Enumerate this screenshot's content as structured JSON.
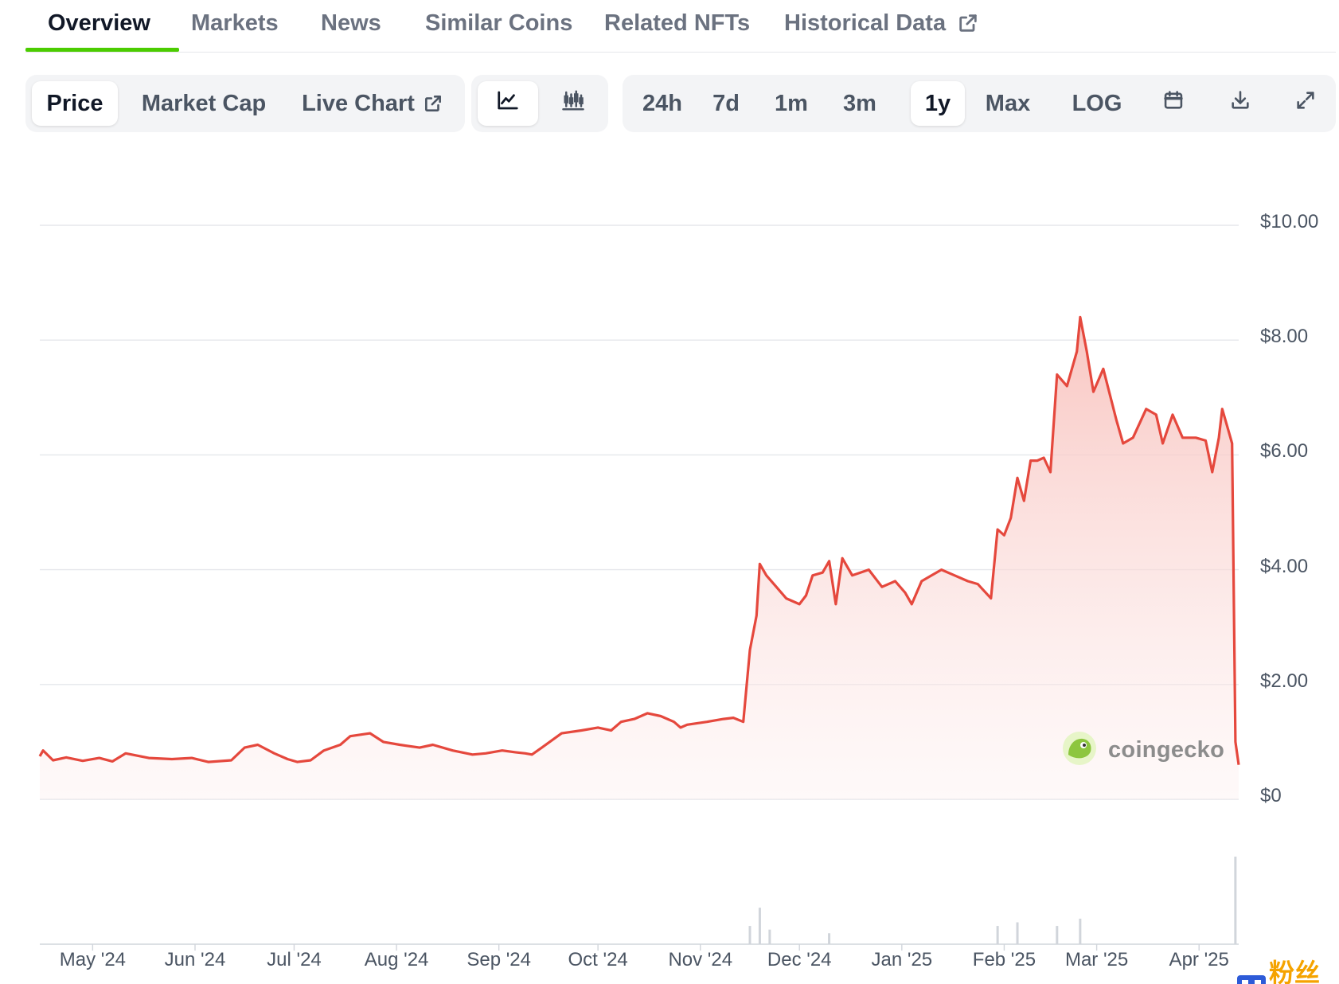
{
  "tabs": [
    {
      "label": "Overview",
      "active": true
    },
    {
      "label": "Markets",
      "active": false
    },
    {
      "label": "News",
      "active": false
    },
    {
      "label": "Similar Coins",
      "active": false
    },
    {
      "label": "Related NFTs",
      "active": false
    },
    {
      "label": "Historical Data",
      "active": false,
      "external": true
    }
  ],
  "metric_toggle": {
    "price": "Price",
    "market_cap": "Market Cap",
    "live_chart": "Live Chart",
    "selected": "Price"
  },
  "chart_style_toggle": {
    "line_icon": "line-chart-icon",
    "candle_icon": "candlestick-chart-icon",
    "selected": "line"
  },
  "ranges": {
    "items": [
      "24h",
      "7d",
      "1m",
      "3m",
      "1y",
      "Max",
      "LOG"
    ],
    "selected": "1y",
    "calendar_icon": "calendar-icon",
    "download_icon": "download-icon",
    "fullscreen_icon": "expand-icon"
  },
  "watermark": {
    "text": "coingecko"
  },
  "corner_logo": {
    "text": "粉丝社区"
  },
  "colors": {
    "line": "#e5483d",
    "fill_top": "#f9c8c4",
    "accent_green": "#4bcc00",
    "grid": "#e5e7eb"
  },
  "chart_data": {
    "type": "area",
    "title": "",
    "xlabel": "",
    "ylabel": "",
    "y_tick_labels": [
      "$10.00",
      "$8.00",
      "$6.00",
      "$4.00",
      "$2.00",
      "$0"
    ],
    "y_ticks": [
      10,
      8,
      6,
      4,
      2,
      0
    ],
    "ylim": [
      0,
      10
    ],
    "x_tick_labels": [
      "May '24",
      "Jun '24",
      "Jul '24",
      "Aug '24",
      "Sep '24",
      "Oct '24",
      "Nov '24",
      "Dec '24",
      "Jan '25",
      "Feb '25",
      "Mar '25",
      "Apr '25"
    ],
    "x_tick_dates": [
      "2024-05-01",
      "2024-06-01",
      "2024-07-01",
      "2024-08-01",
      "2024-09-01",
      "2024-10-01",
      "2024-11-01",
      "2024-12-01",
      "2025-01-01",
      "2025-02-01",
      "2025-03-01",
      "2025-04-01"
    ],
    "grid": true,
    "series": [
      {
        "values": [
          [
            "2024-04-15",
            0.75
          ],
          [
            "2024-04-16",
            0.85
          ],
          [
            "2024-04-19",
            0.68
          ],
          [
            "2024-04-23",
            0.73
          ],
          [
            "2024-04-28",
            0.67
          ],
          [
            "2024-05-03",
            0.72
          ],
          [
            "2024-05-07",
            0.66
          ],
          [
            "2024-05-11",
            0.8
          ],
          [
            "2024-05-18",
            0.72
          ],
          [
            "2024-05-25",
            0.7
          ],
          [
            "2024-05-31",
            0.72
          ],
          [
            "2024-06-05",
            0.65
          ],
          [
            "2024-06-12",
            0.68
          ],
          [
            "2024-06-16",
            0.9
          ],
          [
            "2024-06-20",
            0.95
          ],
          [
            "2024-06-25",
            0.8
          ],
          [
            "2024-06-29",
            0.7
          ],
          [
            "2024-07-02",
            0.65
          ],
          [
            "2024-07-06",
            0.68
          ],
          [
            "2024-07-10",
            0.85
          ],
          [
            "2024-07-15",
            0.95
          ],
          [
            "2024-07-18",
            1.1
          ],
          [
            "2024-07-24",
            1.15
          ],
          [
            "2024-07-28",
            1.0
          ],
          [
            "2024-08-02",
            0.95
          ],
          [
            "2024-08-08",
            0.9
          ],
          [
            "2024-08-12",
            0.95
          ],
          [
            "2024-08-18",
            0.85
          ],
          [
            "2024-08-24",
            0.78
          ],
          [
            "2024-08-28",
            0.8
          ],
          [
            "2024-09-02",
            0.85
          ],
          [
            "2024-09-06",
            0.82
          ],
          [
            "2024-09-09",
            0.8
          ],
          [
            "2024-09-11",
            0.78
          ],
          [
            "2024-09-14",
            0.9
          ],
          [
            "2024-09-20",
            1.15
          ],
          [
            "2024-09-26",
            1.2
          ],
          [
            "2024-10-01",
            1.25
          ],
          [
            "2024-10-05",
            1.2
          ],
          [
            "2024-10-08",
            1.35
          ],
          [
            "2024-10-12",
            1.4
          ],
          [
            "2024-10-16",
            1.5
          ],
          [
            "2024-10-20",
            1.45
          ],
          [
            "2024-10-24",
            1.35
          ],
          [
            "2024-10-26",
            1.25
          ],
          [
            "2024-10-28",
            1.3
          ],
          [
            "2024-11-03",
            1.35
          ],
          [
            "2024-11-08",
            1.4
          ],
          [
            "2024-11-11",
            1.42
          ],
          [
            "2024-11-14",
            1.35
          ],
          [
            "2024-11-16",
            2.6
          ],
          [
            "2024-11-18",
            3.2
          ],
          [
            "2024-11-19",
            4.1
          ],
          [
            "2024-11-21",
            3.9
          ],
          [
            "2024-11-24",
            3.7
          ],
          [
            "2024-11-27",
            3.5
          ],
          [
            "2024-12-01",
            3.4
          ],
          [
            "2024-12-03",
            3.55
          ],
          [
            "2024-12-05",
            3.9
          ],
          [
            "2024-12-08",
            3.95
          ],
          [
            "2024-12-10",
            4.15
          ],
          [
            "2024-12-12",
            3.4
          ],
          [
            "2024-12-14",
            4.2
          ],
          [
            "2024-12-17",
            3.9
          ],
          [
            "2024-12-22",
            4.0
          ],
          [
            "2024-12-26",
            3.7
          ],
          [
            "2024-12-30",
            3.8
          ],
          [
            "2025-01-02",
            3.6
          ],
          [
            "2025-01-04",
            3.4
          ],
          [
            "2025-01-07",
            3.8
          ],
          [
            "2025-01-10",
            3.9
          ],
          [
            "2025-01-13",
            4.0
          ],
          [
            "2025-01-17",
            3.9
          ],
          [
            "2025-01-21",
            3.8
          ],
          [
            "2025-01-24",
            3.75
          ],
          [
            "2025-01-28",
            3.5
          ],
          [
            "2025-01-30",
            4.7
          ],
          [
            "2025-02-01",
            4.6
          ],
          [
            "2025-02-03",
            4.9
          ],
          [
            "2025-02-05",
            5.6
          ],
          [
            "2025-02-07",
            5.2
          ],
          [
            "2025-02-09",
            5.9
          ],
          [
            "2025-02-11",
            5.9
          ],
          [
            "2025-02-13",
            5.95
          ],
          [
            "2025-02-15",
            5.7
          ],
          [
            "2025-02-17",
            7.4
          ],
          [
            "2025-02-20",
            7.2
          ],
          [
            "2025-02-23",
            7.8
          ],
          [
            "2025-02-24",
            8.4
          ],
          [
            "2025-02-26",
            7.8
          ],
          [
            "2025-02-28",
            7.1
          ],
          [
            "2025-03-03",
            7.5
          ],
          [
            "2025-03-07",
            6.6
          ],
          [
            "2025-03-09",
            6.2
          ],
          [
            "2025-03-12",
            6.3
          ],
          [
            "2025-03-16",
            6.8
          ],
          [
            "2025-03-19",
            6.7
          ],
          [
            "2025-03-21",
            6.2
          ],
          [
            "2025-03-24",
            6.7
          ],
          [
            "2025-03-27",
            6.3
          ],
          [
            "2025-03-31",
            6.3
          ],
          [
            "2025-04-03",
            6.25
          ],
          [
            "2025-04-05",
            5.7
          ],
          [
            "2025-04-07",
            6.3
          ],
          [
            "2025-04-08",
            6.8
          ],
          [
            "2025-04-10",
            6.4
          ],
          [
            "2025-04-11",
            6.2
          ],
          [
            "2025-04-12",
            1.0
          ],
          [
            "2025-04-13",
            0.6
          ]
        ]
      }
    ],
    "volume": {
      "note_free": true,
      "values": [
        [
          "2024-11-16",
          0.5
        ],
        [
          "2024-11-19",
          1.0
        ],
        [
          "2024-11-22",
          0.4
        ],
        [
          "2024-12-10",
          0.3
        ],
        [
          "2025-01-30",
          0.5
        ],
        [
          "2025-02-05",
          0.6
        ],
        [
          "2025-02-17",
          0.5
        ],
        [
          "2025-02-24",
          0.7
        ],
        [
          "2025-04-12",
          2.4
        ]
      ]
    }
  }
}
